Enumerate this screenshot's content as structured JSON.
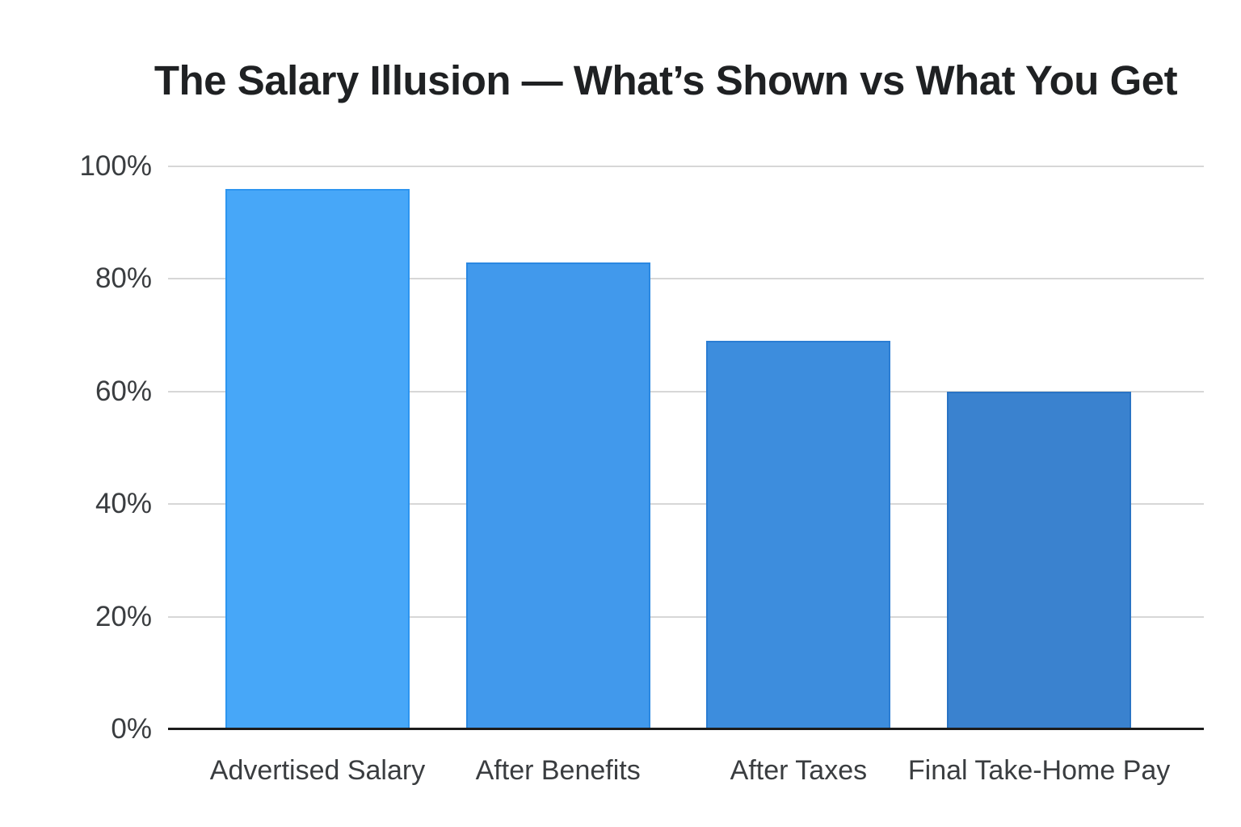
{
  "chart_data": {
    "type": "bar",
    "title": "The Salary Illusion — What’s Shown vs What You Get",
    "categories": [
      "Advertised Salary",
      "After Benefits",
      "After Taxes",
      "Final Take-Home Pay"
    ],
    "values": [
      96,
      83,
      69,
      60
    ],
    "unit": "%",
    "xlabel": "",
    "ylabel": "",
    "ylim": [
      0,
      100
    ],
    "yticks": [
      0,
      20,
      40,
      60,
      80,
      100
    ],
    "ytick_labels": [
      "0%",
      "20%",
      "40%",
      "60%",
      "80%",
      "100%"
    ],
    "grid": "horizontal gridlines at each y tick, no vertical gridlines",
    "legend_position": "none",
    "colors": {
      "bar_fills": [
        "#47A7F8",
        "#4199EC",
        "#3D8DDD",
        "#3A82CF"
      ],
      "bar_borders": [
        "#2D95F0",
        "#2A88E2",
        "#2B7DD3",
        "#2973C4"
      ],
      "gridline": "#D7D7D7",
      "axis_line": "#1C1C1C",
      "title_text": "#1F2123",
      "label_text": "#3A3D40"
    }
  }
}
